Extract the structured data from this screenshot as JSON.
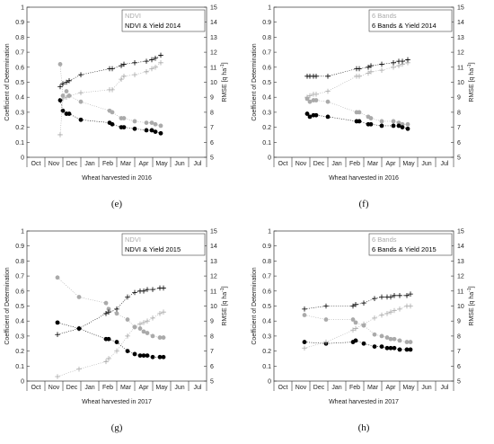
{
  "chart_data": [
    {
      "type": "scatter",
      "panel_label": "(e)",
      "xlabel": "Wheat harvested in 2016",
      "ylabel": "Coefficient of Determination",
      "ylabel2": "RMSE",
      "ylabel2_unit": "[q ha",
      "ylabel2_exp": "-1",
      "ylabel2_close": "]",
      "ylim": [
        0,
        1
      ],
      "yticks": [
        "0",
        "0.1",
        "0.2",
        "0.3",
        "0.4",
        "0.5",
        "0.6",
        "0.7",
        "0.8",
        "0.9",
        "1"
      ],
      "y2lim": [
        5,
        15
      ],
      "y2ticks": [
        "5",
        "6",
        "7",
        "8",
        "9",
        "10",
        "11",
        "12",
        "13",
        "14",
        "15"
      ],
      "categories": [
        "Oct",
        "Nov",
        "Dec",
        "Jan",
        "Feb",
        "Mar",
        "Apr",
        "May",
        "Jun",
        "Jul"
      ],
      "legend": [
        "NDVI",
        "NDVI & Yield 2014"
      ],
      "legend_position": "top-right",
      "series": [
        {
          "name": "NDVI",
          "kind": "r2",
          "color": "#aaaaaa",
          "x": [
            1.85,
            2.0,
            2.2,
            2.35,
            3.0,
            4.6,
            4.75,
            5.25,
            5.4,
            6.0,
            6.65,
            6.95,
            7.15,
            7.45
          ],
          "y": [
            0.62,
            0.41,
            0.44,
            0.41,
            0.37,
            0.31,
            0.3,
            0.26,
            0.26,
            0.24,
            0.23,
            0.23,
            0.22,
            0.21
          ]
        },
        {
          "name": "NDVI & Yield 2014",
          "kind": "r2",
          "color": "#000000",
          "x": [
            1.85,
            2.0,
            2.2,
            2.35,
            3.0,
            4.6,
            4.75,
            5.25,
            5.4,
            6.0,
            6.65,
            6.95,
            7.15,
            7.45
          ],
          "y": [
            0.38,
            0.31,
            0.29,
            0.29,
            0.25,
            0.23,
            0.22,
            0.2,
            0.2,
            0.19,
            0.18,
            0.18,
            0.17,
            0.16
          ]
        },
        {
          "name": "NDVI",
          "kind": "rmse",
          "color": "#aaaaaa",
          "x": [
            1.85,
            2.0,
            2.2,
            2.35,
            3.0,
            4.6,
            4.75,
            5.25,
            5.4,
            6.0,
            6.65,
            6.95,
            7.15,
            7.45
          ],
          "y": [
            6.5,
            8.9,
            9.0,
            9.1,
            9.3,
            9.5,
            9.5,
            10.2,
            10.4,
            10.5,
            10.7,
            10.9,
            11.0,
            11.3
          ]
        },
        {
          "name": "NDVI & Yield 2014",
          "kind": "rmse",
          "color": "#000000",
          "x": [
            1.85,
            2.0,
            2.2,
            2.35,
            3.0,
            4.6,
            4.75,
            5.25,
            5.4,
            6.0,
            6.65,
            6.95,
            7.15,
            7.45
          ],
          "y": [
            9.7,
            9.9,
            10.0,
            10.1,
            10.5,
            10.9,
            10.9,
            11.1,
            11.2,
            11.3,
            11.4,
            11.5,
            11.6,
            11.8
          ]
        }
      ]
    },
    {
      "type": "scatter",
      "panel_label": "(f)",
      "xlabel": "Wheat harvested in 2016",
      "ylabel": "Coefficient of Determination",
      "ylabel2": "RMSE",
      "ylabel2_unit": "[q ha",
      "ylabel2_exp": "-1",
      "ylabel2_close": "]",
      "ylim": [
        0,
        1
      ],
      "yticks": [
        "0",
        "0.1",
        "0.2",
        "0.3",
        "0.4",
        "0.5",
        "0.6",
        "0.7",
        "0.8",
        "0.9",
        "1"
      ],
      "y2lim": [
        5,
        15
      ],
      "y2ticks": [
        "5",
        "6",
        "7",
        "8",
        "9",
        "10",
        "11",
        "12",
        "13",
        "14",
        "15"
      ],
      "categories": [
        "Oct",
        "Nov",
        "Dec",
        "Jan",
        "Feb",
        "Mar",
        "Apr",
        "May",
        "Jun",
        "Jul"
      ],
      "legend": [
        "6 Bands",
        "6 Bands & Yield 2014"
      ],
      "legend_position": "top-right",
      "series": [
        {
          "name": "6 Bands",
          "kind": "r2",
          "color": "#aaaaaa",
          "x": [
            1.85,
            2.0,
            2.2,
            2.35,
            3.0,
            4.6,
            4.75,
            5.25,
            5.4,
            6.0,
            6.65,
            6.95,
            7.15,
            7.45
          ],
          "y": [
            0.39,
            0.37,
            0.38,
            0.38,
            0.37,
            0.3,
            0.3,
            0.27,
            0.26,
            0.24,
            0.24,
            0.23,
            0.22,
            0.22
          ]
        },
        {
          "name": "6 Bands & Yield 2014",
          "kind": "r2",
          "color": "#000000",
          "x": [
            1.85,
            2.0,
            2.2,
            2.35,
            3.0,
            4.6,
            4.75,
            5.25,
            5.4,
            6.0,
            6.65,
            6.95,
            7.15,
            7.45
          ],
          "y": [
            0.29,
            0.27,
            0.28,
            0.28,
            0.27,
            0.24,
            0.24,
            0.22,
            0.22,
            0.21,
            0.21,
            0.21,
            0.2,
            0.19
          ]
        },
        {
          "name": "6 Bands",
          "kind": "rmse",
          "color": "#aaaaaa",
          "x": [
            1.85,
            2.0,
            2.2,
            2.35,
            3.0,
            4.6,
            4.75,
            5.25,
            5.4,
            6.0,
            6.65,
            6.95,
            7.15,
            7.45
          ],
          "y": [
            9.0,
            9.1,
            9.2,
            9.2,
            9.4,
            10.4,
            10.4,
            10.6,
            10.7,
            10.8,
            11.0,
            11.1,
            11.2,
            11.3
          ]
        },
        {
          "name": "6 Bands & Yield 2014",
          "kind": "rmse",
          "color": "#000000",
          "x": [
            1.85,
            2.0,
            2.2,
            2.35,
            3.0,
            4.6,
            4.75,
            5.25,
            5.4,
            6.0,
            6.65,
            6.95,
            7.15,
            7.45
          ],
          "y": [
            10.4,
            10.4,
            10.4,
            10.4,
            10.4,
            10.9,
            10.9,
            11.0,
            11.1,
            11.2,
            11.3,
            11.4,
            11.4,
            11.5
          ]
        }
      ]
    },
    {
      "type": "scatter",
      "panel_label": "(g)",
      "xlabel": "Wheat harvested in 2017",
      "ylabel": "Coefficient of Determination",
      "ylabel2": "RMSE",
      "ylabel2_unit": "[q ha",
      "ylabel2_exp": "-1",
      "ylabel2_close": "]",
      "ylim": [
        0,
        1
      ],
      "yticks": [
        "0",
        "0.1",
        "0.2",
        "0.3",
        "0.4",
        "0.5",
        "0.6",
        "0.7",
        "0.8",
        "0.9",
        "1"
      ],
      "y2lim": [
        5,
        15
      ],
      "y2ticks": [
        "5",
        "6",
        "7",
        "8",
        "9",
        "10",
        "11",
        "12",
        "13",
        "14",
        "15"
      ],
      "categories": [
        "Oct",
        "Nov",
        "Dec",
        "Jan",
        "Feb",
        "Mar",
        "Apr",
        "May",
        "Jun",
        "Jul"
      ],
      "legend": [
        "NDVI",
        "NDVI & Yield 2015"
      ],
      "legend_position": "top-right",
      "series": [
        {
          "name": "NDVI",
          "kind": "r2",
          "color": "#aaaaaa",
          "x": [
            1.7,
            2.9,
            4.4,
            4.55,
            5.0,
            5.6,
            6.0,
            6.3,
            6.5,
            6.7,
            7.0,
            7.4,
            7.6
          ],
          "y": [
            0.69,
            0.56,
            0.52,
            0.48,
            0.45,
            0.41,
            0.36,
            0.35,
            0.33,
            0.32,
            0.3,
            0.29,
            0.29
          ]
        },
        {
          "name": "NDVI & Yield 2015",
          "kind": "r2",
          "color": "#000000",
          "x": [
            1.7,
            2.9,
            4.4,
            4.55,
            5.0,
            5.6,
            6.0,
            6.3,
            6.5,
            6.7,
            7.0,
            7.4,
            7.6
          ],
          "y": [
            0.39,
            0.35,
            0.28,
            0.28,
            0.26,
            0.2,
            0.18,
            0.17,
            0.17,
            0.17,
            0.16,
            0.16,
            0.16
          ]
        },
        {
          "name": "NDVI",
          "kind": "rmse",
          "color": "#aaaaaa",
          "x": [
            1.7,
            2.9,
            4.4,
            4.55,
            5.0,
            5.6,
            6.0,
            6.3,
            6.5,
            6.7,
            7.0,
            7.4,
            7.6
          ],
          "y": [
            5.3,
            5.8,
            6.3,
            6.5,
            7.0,
            8.0,
            8.6,
            8.8,
            8.9,
            9.0,
            9.2,
            9.5,
            9.6
          ]
        },
        {
          "name": "NDVI & Yield 2015",
          "kind": "rmse",
          "color": "#000000",
          "x": [
            1.7,
            2.9,
            4.4,
            4.55,
            5.0,
            5.6,
            6.0,
            6.3,
            6.5,
            6.7,
            7.0,
            7.4,
            7.6
          ],
          "y": [
            8.1,
            8.5,
            9.5,
            9.6,
            9.8,
            10.6,
            10.9,
            11.0,
            11.0,
            11.1,
            11.1,
            11.2,
            11.2
          ]
        }
      ]
    },
    {
      "type": "scatter",
      "panel_label": "(h)",
      "xlabel": "Wheat harvested in 2017",
      "ylabel": "Coefficient of Determination",
      "ylabel2": "RMSE",
      "ylabel2_unit": "[q ha",
      "ylabel2_exp": "-1",
      "ylabel2_close": "]",
      "ylim": [
        0,
        1
      ],
      "yticks": [
        "0",
        "0.1",
        "0.2",
        "0.3",
        "0.4",
        "0.5",
        "0.6",
        "0.7",
        "0.8",
        "0.9",
        "1"
      ],
      "y2lim": [
        5,
        15
      ],
      "y2ticks": [
        "5",
        "6",
        "7",
        "8",
        "9",
        "10",
        "11",
        "12",
        "13",
        "14",
        "15"
      ],
      "categories": [
        "Oct",
        "Nov",
        "Dec",
        "Jan",
        "Feb",
        "Mar",
        "Apr",
        "May",
        "Jun",
        "Jul"
      ],
      "legend": [
        "6 Bands",
        "6 Bands & Yield 2015"
      ],
      "legend_position": "top-right",
      "series": [
        {
          "name": "6 Bands",
          "kind": "r2",
          "color": "#aaaaaa",
          "x": [
            1.7,
            2.9,
            4.4,
            4.55,
            5.0,
            5.6,
            6.0,
            6.3,
            6.5,
            6.7,
            7.0,
            7.4,
            7.6
          ],
          "y": [
            0.44,
            0.41,
            0.41,
            0.39,
            0.37,
            0.31,
            0.3,
            0.29,
            0.28,
            0.28,
            0.27,
            0.26,
            0.26
          ]
        },
        {
          "name": "6 Bands & Yield 2015",
          "kind": "r2",
          "color": "#000000",
          "x": [
            1.7,
            2.9,
            4.4,
            4.55,
            5.0,
            5.6,
            6.0,
            6.3,
            6.5,
            6.7,
            7.0,
            7.4,
            7.6
          ],
          "y": [
            0.26,
            0.25,
            0.26,
            0.27,
            0.25,
            0.23,
            0.23,
            0.22,
            0.22,
            0.22,
            0.21,
            0.21,
            0.21
          ]
        },
        {
          "name": "6 Bands",
          "kind": "rmse",
          "color": "#aaaaaa",
          "x": [
            1.7,
            2.9,
            4.4,
            4.55,
            5.0,
            5.6,
            6.0,
            6.3,
            6.5,
            6.7,
            7.0,
            7.4,
            7.6
          ],
          "y": [
            7.2,
            7.6,
            8.4,
            8.5,
            8.8,
            9.2,
            9.4,
            9.5,
            9.6,
            9.7,
            9.8,
            10.0,
            10.0
          ]
        },
        {
          "name": "6 Bands & Yield 2015",
          "kind": "rmse",
          "color": "#000000",
          "x": [
            1.7,
            2.9,
            4.4,
            4.55,
            5.0,
            5.6,
            6.0,
            6.3,
            6.5,
            6.7,
            7.0,
            7.4,
            7.6
          ],
          "y": [
            9.8,
            10.0,
            10.0,
            10.1,
            10.2,
            10.5,
            10.6,
            10.6,
            10.6,
            10.7,
            10.7,
            10.7,
            10.8
          ]
        }
      ]
    }
  ]
}
